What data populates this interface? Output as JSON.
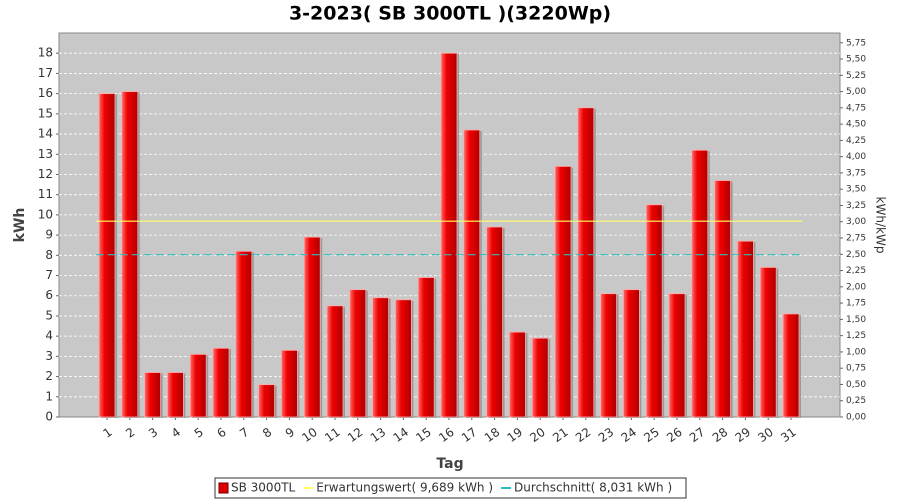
{
  "chart_data": {
    "type": "bar",
    "title": "3-2023( SB 3000TL )(3220Wp)",
    "x_label": "Tag",
    "y_label": "kWh",
    "y2_label": "kWh/kWp",
    "categories": [
      "1",
      "2",
      "3",
      "4",
      "5",
      "6",
      "7",
      "8",
      "9",
      "10",
      "11",
      "12",
      "13",
      "14",
      "15",
      "16",
      "17",
      "18",
      "19",
      "20",
      "21",
      "22",
      "23",
      "24",
      "25",
      "26",
      "27",
      "28",
      "29",
      "30",
      "31"
    ],
    "series": [
      {
        "name": "SB 3000TL",
        "color": "#e00000",
        "values": [
          16.0,
          16.1,
          2.2,
          2.2,
          3.1,
          3.4,
          8.2,
          1.6,
          3.3,
          8.9,
          5.5,
          6.3,
          5.9,
          5.8,
          6.9,
          18.0,
          14.2,
          9.4,
          4.2,
          3.9,
          12.4,
          15.3,
          6.1,
          6.3,
          10.5,
          6.1,
          13.2,
          11.7,
          8.7,
          7.4,
          5.1
        ]
      }
    ],
    "reference_lines": [
      {
        "name": "Erwartungswert( 9,689 kWh )",
        "value": 9.689,
        "color": "#ffff66",
        "dashed": false
      },
      {
        "name": "Durchschnitt( 8,031 kWh )",
        "value": 8.031,
        "color": "#33bbbb",
        "dashed": true
      }
    ],
    "ylim": [
      0,
      19
    ],
    "yticks": [
      0,
      1,
      2,
      3,
      4,
      5,
      6,
      7,
      8,
      9,
      10,
      11,
      12,
      13,
      14,
      15,
      16,
      17,
      18
    ],
    "y2lim": [
      0,
      5.9
    ],
    "y2ticks": [
      {
        "value": 0,
        "label": "0,00"
      },
      {
        "value": 0.25,
        "label": "0,25"
      },
      {
        "value": 0.5,
        "label": "0,50"
      },
      {
        "value": 0.75,
        "label": "0,75"
      },
      {
        "value": 1,
        "label": "1,00"
      },
      {
        "value": 1.25,
        "label": "1,25"
      },
      {
        "value": 1.5,
        "label": "1,50"
      },
      {
        "value": 1.75,
        "label": "1,75"
      },
      {
        "value": 2,
        "label": "2,00"
      },
      {
        "value": 2.25,
        "label": "2,25"
      },
      {
        "value": 2.5,
        "label": "2,50"
      },
      {
        "value": 2.75,
        "label": "2,75"
      },
      {
        "value": 3,
        "label": "3,00"
      },
      {
        "value": 3.25,
        "label": "3,25"
      },
      {
        "value": 3.5,
        "label": "3,50"
      },
      {
        "value": 3.75,
        "label": "3,75"
      },
      {
        "value": 4,
        "label": "4,00"
      },
      {
        "value": 4.25,
        "label": "4,25"
      },
      {
        "value": 4.5,
        "label": "4,50"
      },
      {
        "value": 4.75,
        "label": "4,75"
      },
      {
        "value": 5,
        "label": "5,00"
      },
      {
        "value": 5.25,
        "label": "5,25"
      },
      {
        "value": 5.5,
        "label": "5,50"
      },
      {
        "value": 5.75,
        "label": "5,75"
      }
    ],
    "grid": true
  }
}
